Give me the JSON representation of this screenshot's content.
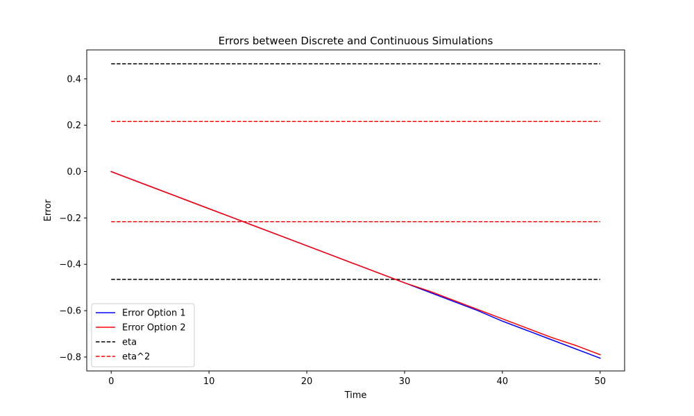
{
  "chart_data": {
    "type": "line",
    "title": "Errors between Discrete and Continuous Simulations",
    "xlabel": "Time",
    "ylabel": "Error",
    "xlim": [
      -2.5,
      52.5
    ],
    "ylim": [
      -0.86,
      0.525
    ],
    "x_ticks": [
      0,
      10,
      20,
      30,
      40,
      50
    ],
    "x_tick_labels": [
      "0",
      "10",
      "20",
      "30",
      "40",
      "50"
    ],
    "y_ticks": [
      -0.8,
      -0.6,
      -0.4,
      -0.2,
      0.0,
      0.2,
      0.4
    ],
    "y_tick_labels": [
      "−0.8",
      "−0.6",
      "−0.4",
      "−0.2",
      "0.0",
      "0.2",
      "0.4"
    ],
    "grid": false,
    "legend_position": "lower-left",
    "series": [
      {
        "name": "Error Option 1",
        "color": "#0000ff",
        "style": "solid",
        "x": [
          0,
          2.5,
          5,
          7.5,
          10,
          12.5,
          15,
          17.5,
          20,
          22.5,
          25,
          27.5,
          30,
          32.5,
          35,
          37.5,
          40,
          42.5,
          45,
          47.5,
          50
        ],
        "y": [
          0.0,
          -0.04,
          -0.08,
          -0.12,
          -0.16,
          -0.2,
          -0.24,
          -0.28,
          -0.32,
          -0.36,
          -0.4,
          -0.44,
          -0.48,
          -0.52,
          -0.56,
          -0.6,
          -0.645,
          -0.685,
          -0.725,
          -0.765,
          -0.805
        ]
      },
      {
        "name": "Error Option 2",
        "color": "#ff0000",
        "style": "solid",
        "x": [
          0,
          2.5,
          5,
          7.5,
          10,
          12.5,
          15,
          17.5,
          20,
          22.5,
          25,
          27.5,
          30,
          32.5,
          35,
          37.5,
          40,
          42.5,
          45,
          47.5,
          50
        ],
        "y": [
          0.0,
          -0.04,
          -0.08,
          -0.12,
          -0.16,
          -0.2,
          -0.24,
          -0.28,
          -0.32,
          -0.36,
          -0.4,
          -0.44,
          -0.48,
          -0.515,
          -0.555,
          -0.595,
          -0.635,
          -0.675,
          -0.715,
          -0.75,
          -0.79
        ]
      }
    ],
    "reference_lines": [
      {
        "name": "eta",
        "color": "#000000",
        "style": "dashed",
        "x_range": [
          0,
          50
        ],
        "values": [
          0.465,
          -0.465
        ]
      },
      {
        "name": "eta^2",
        "color": "#ff0000",
        "style": "dashed",
        "x_range": [
          0,
          50
        ],
        "values": [
          0.216,
          -0.216
        ]
      }
    ],
    "legend": [
      "Error Option 1",
      "Error Option 2",
      "eta",
      "eta^2"
    ]
  }
}
